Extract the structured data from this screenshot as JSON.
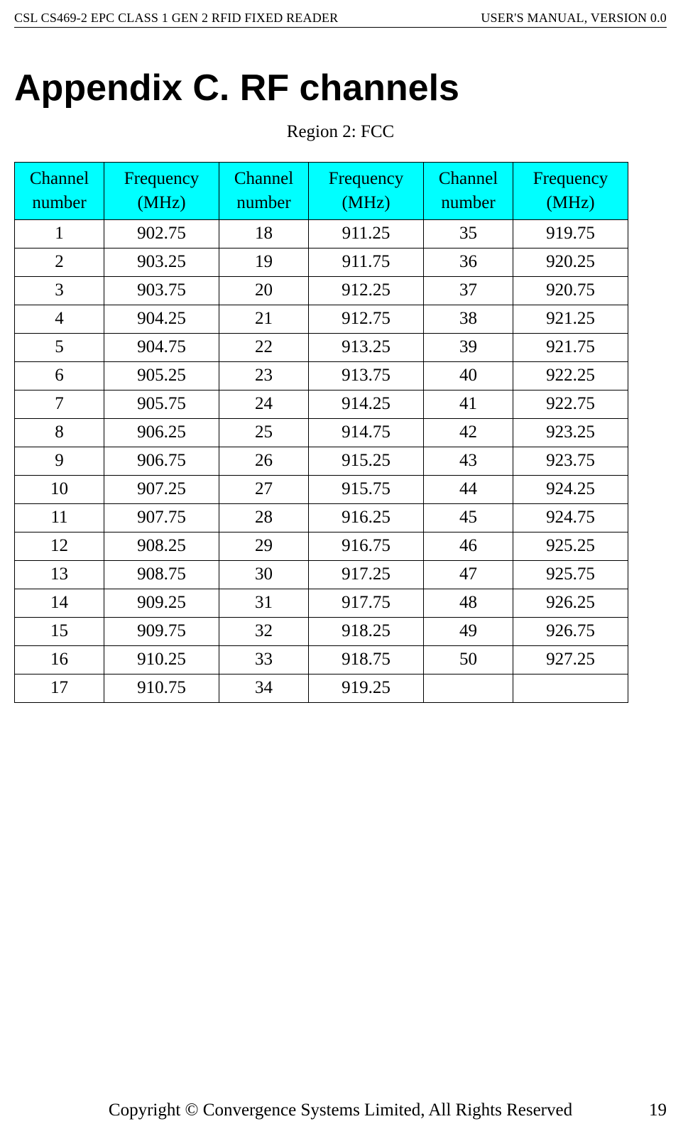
{
  "header": {
    "left": "CSL CS469-2 EPC CLASS 1 GEN 2 RFID FIXED READER",
    "right": "USER'S  MANUAL,  VERSION  0.0"
  },
  "title": "Appendix C. RF channels",
  "subtitle": "Region 2: FCC",
  "table": {
    "header_bg": "#00ffff",
    "col_labels": {
      "channel": "Channel number",
      "channel_line1": "Channel",
      "channel_line2": "number",
      "frequency": "Frequency (MHz)",
      "frequency_line1": "Frequency",
      "frequency_line2": "(MHz)"
    },
    "rows": [
      {
        "c1": "1",
        "f1": "902.75",
        "c2": "18",
        "f2": "911.25",
        "c3": "35",
        "f3": "919.75"
      },
      {
        "c1": "2",
        "f1": "903.25",
        "c2": "19",
        "f2": "911.75",
        "c3": "36",
        "f3": "920.25"
      },
      {
        "c1": "3",
        "f1": "903.75",
        "c2": "20",
        "f2": "912.25",
        "c3": "37",
        "f3": "920.75"
      },
      {
        "c1": "4",
        "f1": "904.25",
        "c2": "21",
        "f2": "912.75",
        "c3": "38",
        "f3": "921.25"
      },
      {
        "c1": "5",
        "f1": "904.75",
        "c2": "22",
        "f2": "913.25",
        "c3": "39",
        "f3": "921.75"
      },
      {
        "c1": "6",
        "f1": "905.25",
        "c2": "23",
        "f2": "913.75",
        "c3": "40",
        "f3": "922.25"
      },
      {
        "c1": "7",
        "f1": "905.75",
        "c2": "24",
        "f2": "914.25",
        "c3": "41",
        "f3": "922.75"
      },
      {
        "c1": "8",
        "f1": "906.25",
        "c2": "25",
        "f2": "914.75",
        "c3": "42",
        "f3": "923.25"
      },
      {
        "c1": "9",
        "f1": "906.75",
        "c2": "26",
        "f2": "915.25",
        "c3": "43",
        "f3": "923.75"
      },
      {
        "c1": "10",
        "f1": "907.25",
        "c2": "27",
        "f2": "915.75",
        "c3": "44",
        "f3": "924.25"
      },
      {
        "c1": "11",
        "f1": "907.75",
        "c2": "28",
        "f2": "916.25",
        "c3": "45",
        "f3": "924.75"
      },
      {
        "c1": "12",
        "f1": "908.25",
        "c2": "29",
        "f2": "916.75",
        "c3": "46",
        "f3": "925.25"
      },
      {
        "c1": "13",
        "f1": "908.75",
        "c2": "30",
        "f2": "917.25",
        "c3": "47",
        "f3": "925.75"
      },
      {
        "c1": "14",
        "f1": "909.25",
        "c2": "31",
        "f2": "917.75",
        "c3": "48",
        "f3": "926.25"
      },
      {
        "c1": "15",
        "f1": "909.75",
        "c2": "32",
        "f2": "918.25",
        "c3": "49",
        "f3": "926.75"
      },
      {
        "c1": "16",
        "f1": "910.25",
        "c2": "33",
        "f2": "918.75",
        "c3": "50",
        "f3": "927.25"
      },
      {
        "c1": "17",
        "f1": "910.75",
        "c2": "34",
        "f2": "919.25",
        "c3": "",
        "f3": ""
      }
    ]
  },
  "footer": {
    "copyright": "Copyright © Convergence Systems Limited, All Rights Reserved",
    "page_number": "19"
  }
}
